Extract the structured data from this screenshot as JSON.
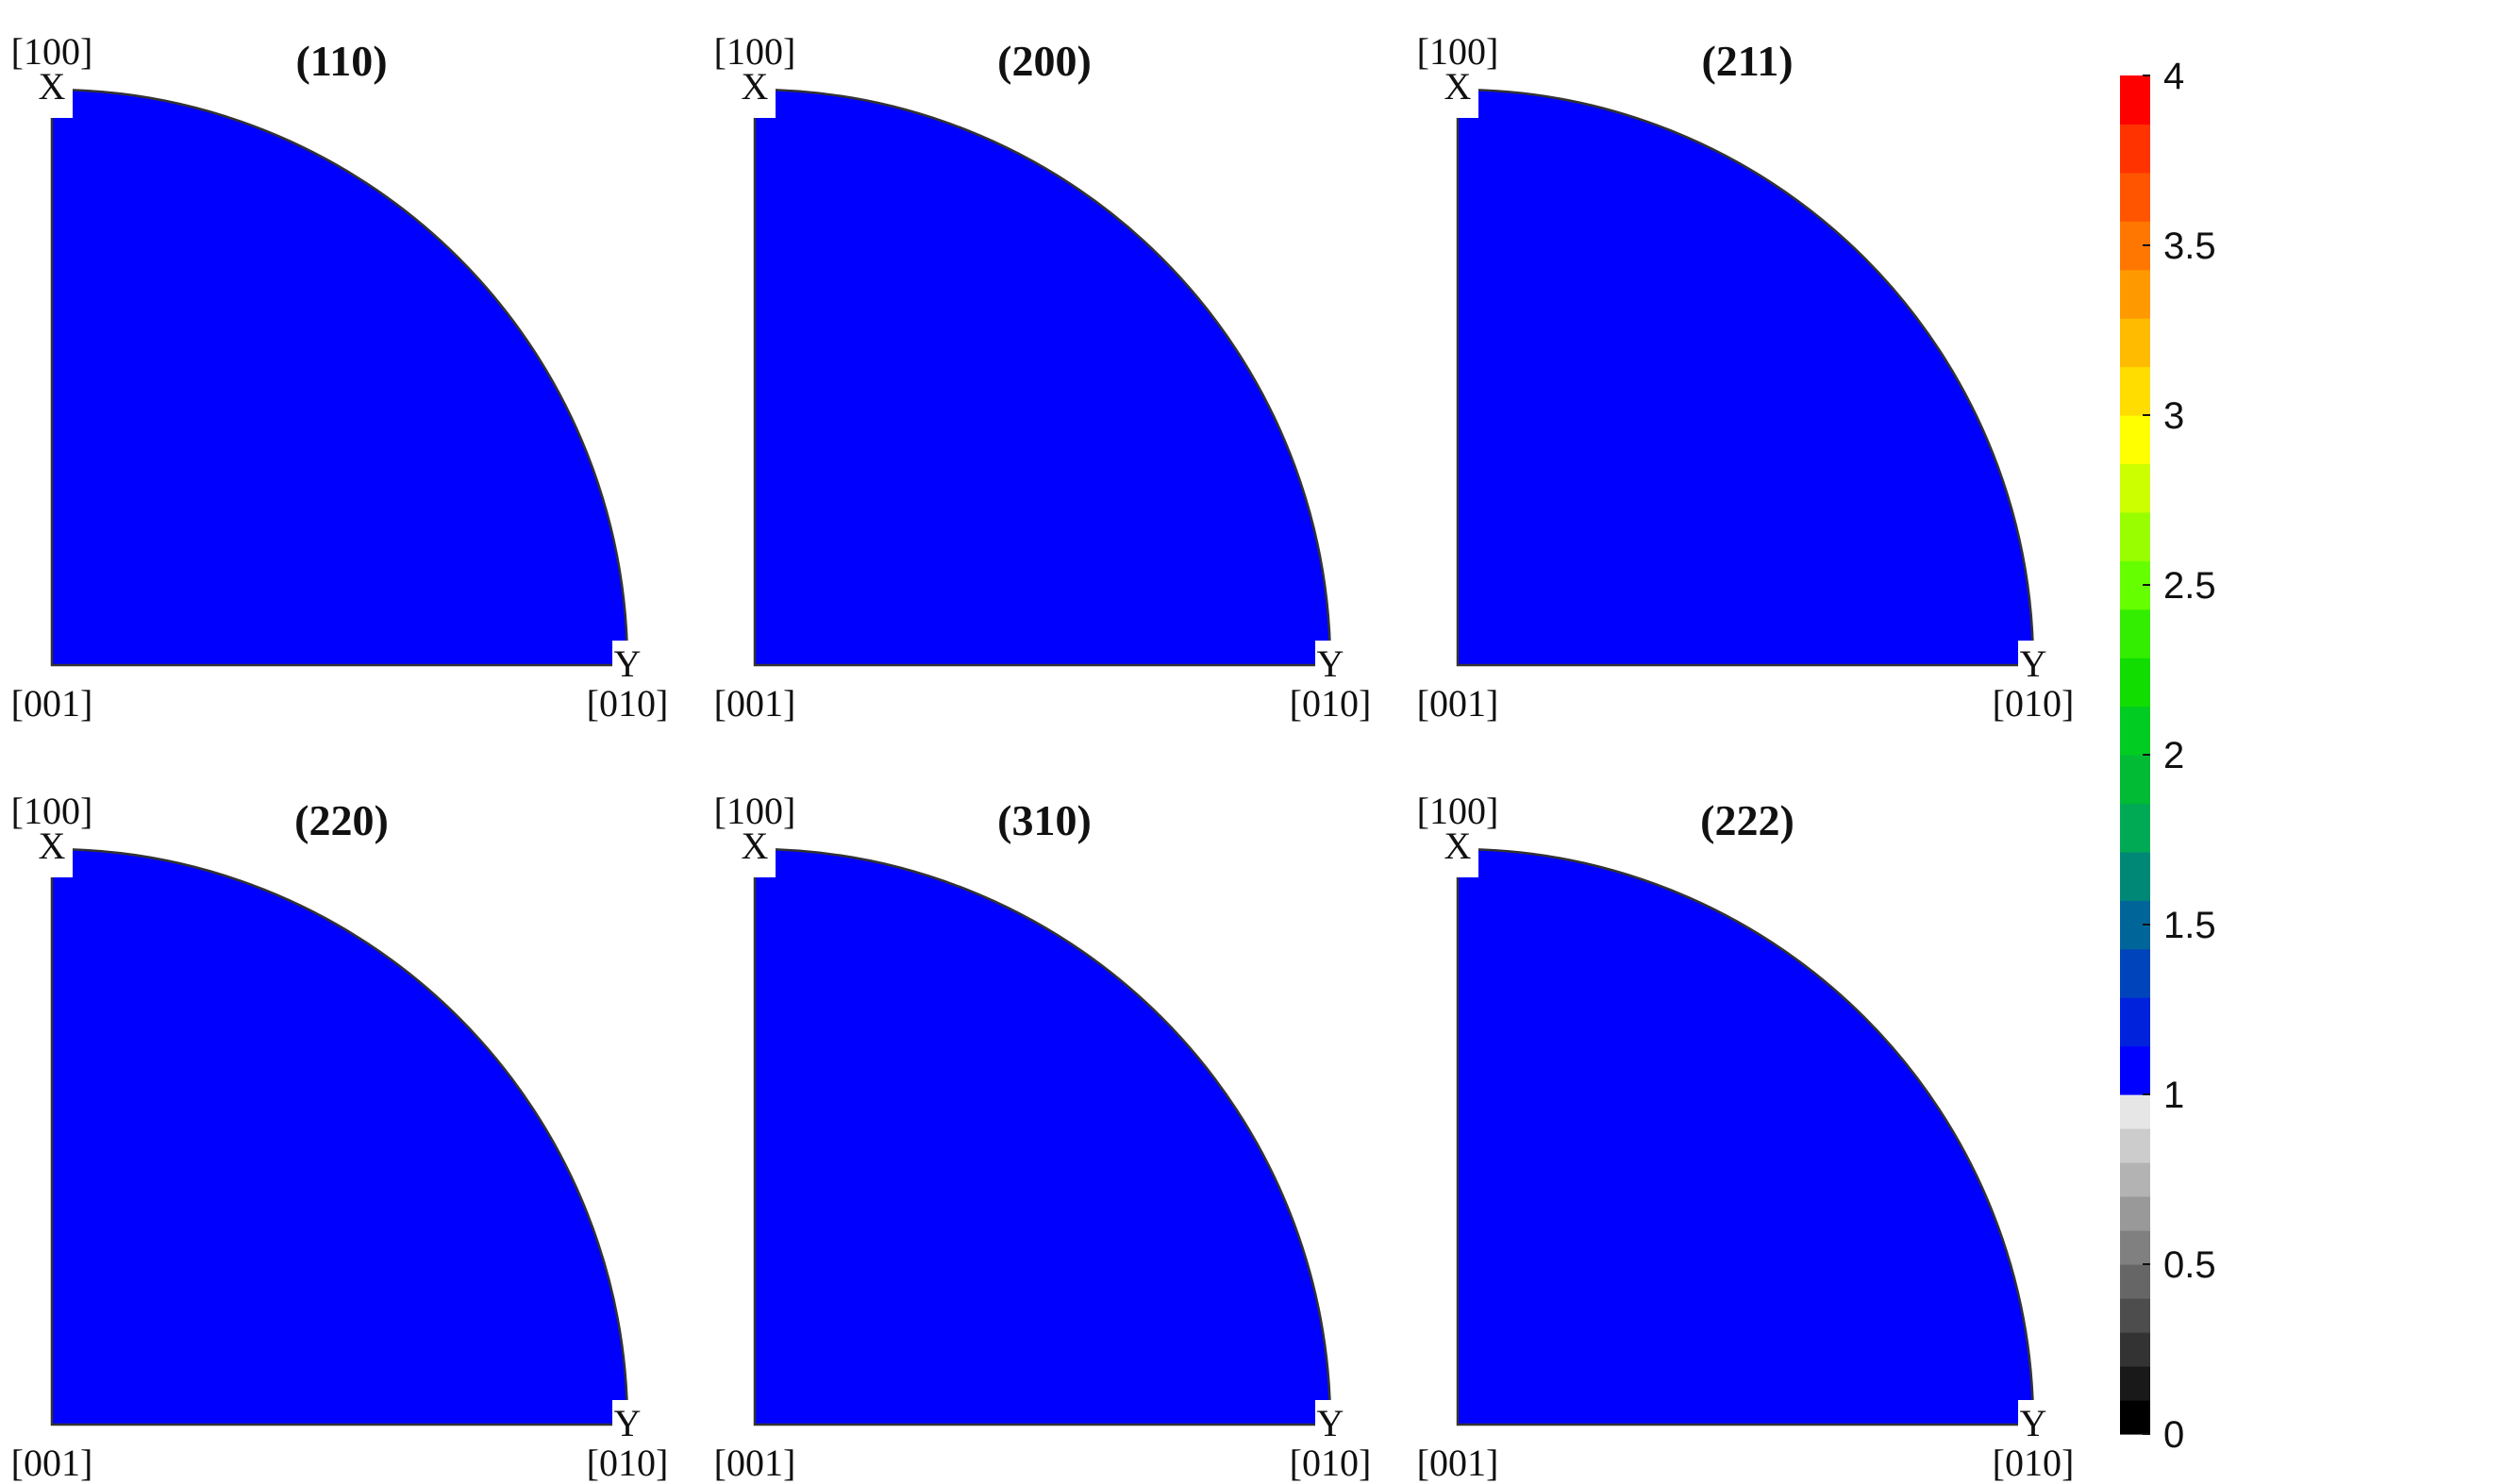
{
  "chart_data": [
    {
      "type": "heatmap",
      "title": "(110)",
      "value": 1,
      "labels": {
        "top": "[100]",
        "x_axis": "X",
        "origin": "[001]",
        "right": "[010]",
        "y_axis": "Y"
      }
    },
    {
      "type": "heatmap",
      "title": "(200)",
      "value": 1,
      "labels": {
        "top": "[100]",
        "x_axis": "X",
        "origin": "[001]",
        "right": "[010]",
        "y_axis": "Y"
      }
    },
    {
      "type": "heatmap",
      "title": "(211)",
      "value": 1,
      "labels": {
        "top": "[100]",
        "x_axis": "X",
        "origin": "[001]",
        "right": "[010]",
        "y_axis": "Y"
      }
    },
    {
      "type": "heatmap",
      "title": "(220)",
      "value": 1,
      "labels": {
        "top": "[100]",
        "x_axis": "X",
        "origin": "[001]",
        "right": "[010]",
        "y_axis": "Y"
      }
    },
    {
      "type": "heatmap",
      "title": "(310)",
      "value": 1,
      "labels": {
        "top": "[100]",
        "x_axis": "X",
        "origin": "[001]",
        "right": "[010]",
        "y_axis": "Y"
      }
    },
    {
      "type": "heatmap",
      "title": "(222)",
      "value": 1,
      "labels": {
        "top": "[100]",
        "x_axis": "X",
        "origin": "[001]",
        "right": "[010]",
        "y_axis": "Y"
      }
    }
  ],
  "colorbar": {
    "range": [
      0,
      4
    ],
    "ticks": [
      "0",
      "0.5",
      "1",
      "1.5",
      "2",
      "2.5",
      "3",
      "3.5",
      "4"
    ],
    "colors_low": [
      "#000000",
      "#191919",
      "#333333",
      "#4d4d4d",
      "#666666",
      "#808080",
      "#999999",
      "#b3b3b3",
      "#cccccc",
      "#e6e6e6"
    ],
    "colors_high": [
      "#0000ff",
      "#0022dd",
      "#0044bb",
      "#006699",
      "#008877",
      "#00aa55",
      "#00bb33",
      "#00cc22",
      "#11dd00",
      "#33ee00",
      "#66ff00",
      "#99ff00",
      "#ccff00",
      "#ffff00",
      "#ffdd00",
      "#ffbb00",
      "#ff9900",
      "#ff7700",
      "#ff5500",
      "#ff3300",
      "#ff0000"
    ]
  },
  "fill_color": "#0000ff"
}
